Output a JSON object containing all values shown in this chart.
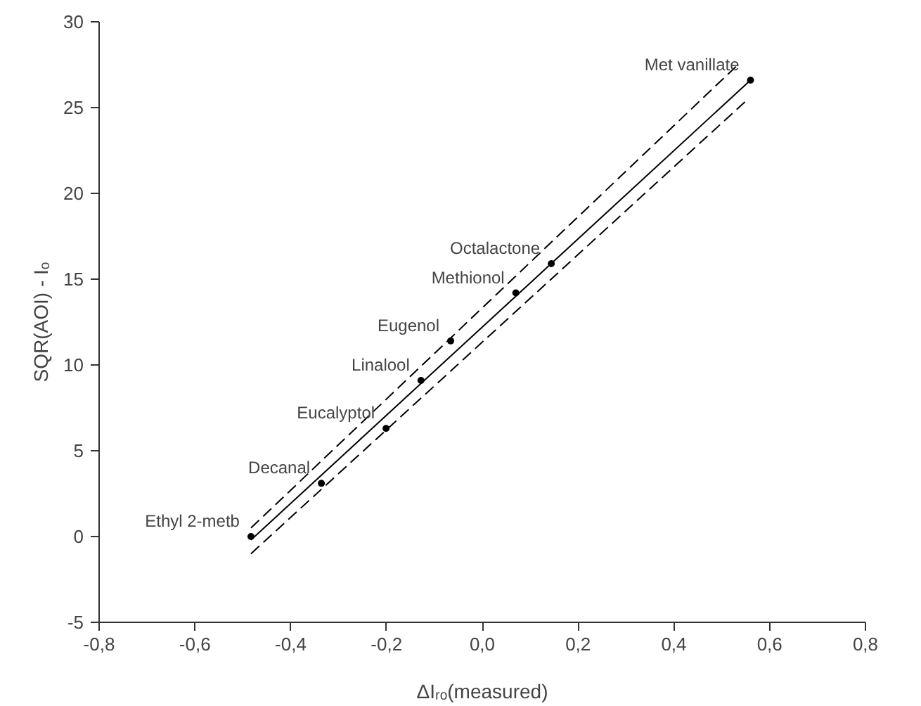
{
  "chart_data": {
    "type": "scatter",
    "xlabel": "ΔIᵣₒ(measured)",
    "ylabel": "SQR(AOI) - Iₒ",
    "series": [
      {
        "color": "#000000",
        "marker": "circle",
        "x": [
          -0.483,
          -0.336,
          -0.201,
          -0.128,
          -0.066,
          0.07,
          0.144,
          0.56
        ],
        "values": [
          0,
          3.1,
          6.3,
          9.1,
          11.4,
          14.2,
          15.9,
          26.6
        ]
      },
      {
        "type": "line",
        "color": "#000000",
        "line_style": "solid",
        "x": [
          -0.483,
          0.56
        ],
        "values": [
          -0.2,
          26.6
        ]
      },
      {
        "type": "line",
        "color": "#000000",
        "line_style": "dashed",
        "x": [
          -0.483,
          0.53
        ],
        "values": [
          0.5,
          27.4
        ]
      },
      {
        "type": "line",
        "color": "#000000",
        "line_style": "dashed",
        "x": [
          -0.483,
          0.555
        ],
        "values": [
          -1,
          25.5
        ]
      }
    ],
    "annotations": [
      {
        "text": "Ethyl 2-metb",
        "x": -0.483,
        "y": 0
      },
      {
        "text": "Decanal",
        "x": -0.336,
        "y": 3.1
      },
      {
        "text": "Eucalyptol",
        "x": -0.201,
        "y": 6.3
      },
      {
        "text": "Linalool",
        "x": -0.128,
        "y": 9.1
      },
      {
        "text": "Eugenol",
        "x": -0.066,
        "y": 11.4
      },
      {
        "text": "Methionol",
        "x": 0.07,
        "y": 14.2
      },
      {
        "text": "Octalactone",
        "x": 0.144,
        "y": 15.9
      },
      {
        "text": "Met vanillate",
        "x": 0.56,
        "y": 26.6
      }
    ],
    "xlim": [
      -0.8,
      0.8
    ],
    "ylim": [
      -5,
      30
    ],
    "xticks": [
      {
        "value": -0.8,
        "label": "-0,8"
      },
      {
        "value": -0.6,
        "label": "-0,6"
      },
      {
        "value": -0.4,
        "label": "-0,4"
      },
      {
        "value": -0.2,
        "label": "-0,2"
      },
      {
        "value": 0,
        "label": "0,0"
      },
      {
        "value": 0.2,
        "label": "0,2"
      },
      {
        "value": 0.4,
        "label": "0,4"
      },
      {
        "value": 0.6,
        "label": "0,6"
      },
      {
        "value": 0.8,
        "label": "0,8"
      }
    ],
    "yticks": [
      -5,
      0,
      5,
      10,
      15,
      20,
      25,
      30
    ],
    "grid": false
  }
}
